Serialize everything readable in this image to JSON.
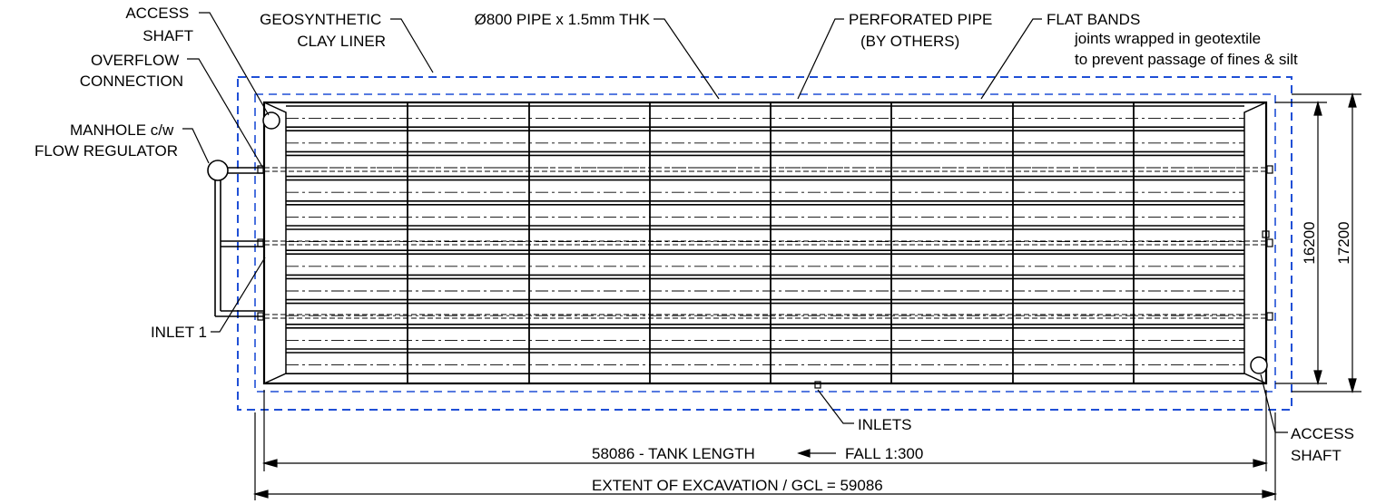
{
  "labels": {
    "access_shaft_top": [
      "ACCESS",
      "SHAFT"
    ],
    "overflow_connection": [
      "OVERFLOW",
      "CONNECTION"
    ],
    "manhole": [
      "MANHOLE c/w",
      "FLOW REGULATOR"
    ],
    "inlet_1": "INLET 1",
    "geosynthetic_clay_liner": [
      "GEOSYNTHETIC",
      "CLAY LINER"
    ],
    "pipe_spec": "Ø800 PIPE x 1.5mm THK",
    "perforated_pipe": [
      "PERFORATED PIPE",
      "(BY OTHERS)"
    ],
    "flat_bands": [
      "FLAT BANDS",
      "joints wrapped in geotextile",
      "to prevent passage of fines & silt"
    ],
    "inlets": "INLETS",
    "access_shaft_bottom": [
      "ACCESS",
      "SHAFT"
    ]
  },
  "dimensions": {
    "tank_length": "58086 - TANK LENGTH",
    "fall": "FALL 1:300",
    "excavation": "EXTENT OF EXCAVATION / GCL = 59086",
    "width_inner": "16200",
    "width_outer": "17200"
  },
  "colors": {
    "line": "#000000",
    "dashed_boundary": "#1f4fd6"
  }
}
